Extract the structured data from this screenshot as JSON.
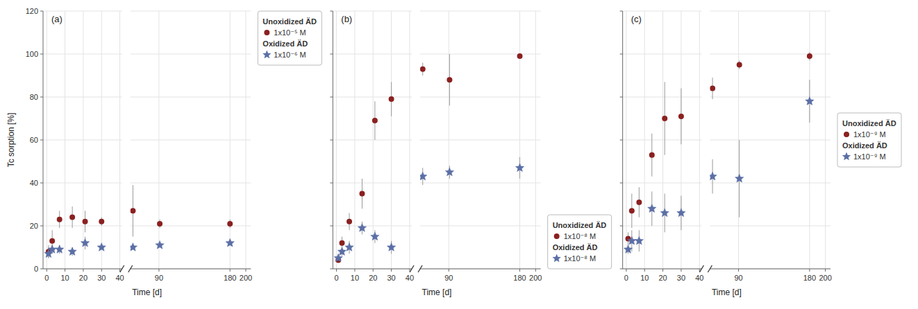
{
  "chart_data": [
    {
      "type": "scatter",
      "title": "(a)",
      "xlabel": "Time [d]",
      "ylabel": "Tc sorption [%]",
      "xlim": [
        [
          -2,
          41.2
        ],
        [
          53.75,
          206.5
        ]
      ],
      "xticks": [
        0,
        10,
        20,
        30,
        40,
        90,
        180,
        200
      ],
      "ylim": [
        0,
        120
      ],
      "yticks": [
        0,
        20,
        40,
        60,
        80,
        100,
        120
      ],
      "grid": true,
      "legend": "upper right",
      "series": [
        {
          "name": "1x10⁻⁵ M",
          "legend_title": "Unoxidized ÄD",
          "color": "#8B2020",
          "marker": "circle",
          "x": [
            1,
            3,
            7,
            14,
            21,
            30,
            57,
            91,
            180
          ],
          "values": [
            8,
            13,
            23,
            24,
            22,
            22,
            27,
            21,
            21
          ],
          "error": [
            3,
            5,
            4,
            5,
            5,
            2,
            12,
            2,
            2
          ]
        },
        {
          "name": "1x10⁻⁶ M",
          "legend_title": "Oxidized ÄD",
          "color": "#5B6FA6",
          "marker": "star",
          "x": [
            1,
            3,
            7,
            14,
            21,
            30,
            57,
            91,
            180
          ],
          "values": [
            7,
            9,
            9,
            8,
            12,
            10,
            10,
            11,
            12
          ],
          "error": [
            2,
            2,
            2,
            2,
            3,
            1,
            1,
            1,
            1
          ]
        }
      ]
    },
    {
      "type": "scatter",
      "title": "(b)",
      "xlabel": "Time [d]",
      "xlim": [
        [
          -2,
          41.2
        ],
        [
          53.75,
          206.5
        ]
      ],
      "xticks": [
        0,
        10,
        20,
        30,
        40,
        90,
        180,
        200
      ],
      "ylim": [
        0,
        120
      ],
      "yticks": [
        0,
        20,
        40,
        60,
        80,
        100,
        120
      ],
      "grid": true,
      "legend": "lower right",
      "tick_labels": "x",
      "series": [
        {
          "name": "1x10⁻⁸ M",
          "legend_title": "Unoxidized ÄD",
          "color": "#8B2020",
          "marker": "circle",
          "x": [
            1,
            3,
            7,
            14,
            21,
            30,
            57,
            91,
            180
          ],
          "values": [
            4,
            12,
            22,
            35,
            69,
            79,
            93,
            88,
            99
          ],
          "error": [
            1,
            3,
            4,
            7,
            9,
            8,
            3,
            12,
            1
          ]
        },
        {
          "name": "1x10⁻⁸ M",
          "legend_title": "Oxidized ÄD",
          "color": "#5B6FA6",
          "marker": "star",
          "x": [
            1,
            3,
            7,
            14,
            21,
            30,
            57,
            91,
            180
          ],
          "values": [
            5,
            8,
            10,
            19,
            15,
            10,
            43,
            45,
            47
          ],
          "error": [
            1,
            2,
            3,
            3,
            3,
            3,
            4,
            3,
            5
          ]
        }
      ]
    },
    {
      "type": "scatter",
      "title": "(c)",
      "xlabel": "Time [d]",
      "xlim": [
        [
          -2,
          41.2
        ],
        [
          53.75,
          206.5
        ]
      ],
      "xticks": [
        0,
        10,
        20,
        30,
        40,
        90,
        180,
        200
      ],
      "ylim": [
        0,
        120
      ],
      "yticks": [
        0,
        20,
        40,
        60,
        80,
        100,
        120
      ],
      "grid": true,
      "legend": "center right",
      "tick_labels": "x",
      "series": [
        {
          "name": "1x10⁻⁹ M",
          "legend_title": "Unoxidized ÄD",
          "color": "#8B2020",
          "marker": "circle",
          "x": [
            1,
            3,
            7,
            14,
            21,
            30,
            57,
            91,
            180
          ],
          "values": [
            14,
            27,
            31,
            53,
            70,
            71,
            84,
            95,
            99
          ],
          "error": [
            3,
            8,
            7,
            10,
            17,
            13,
            5,
            2,
            2
          ]
        },
        {
          "name": "1x10⁻⁹ M",
          "legend_title": "Oxidized ÄD",
          "color": "#5B6FA6",
          "marker": "star",
          "x": [
            1,
            3,
            7,
            14,
            21,
            30,
            57,
            91,
            180
          ],
          "values": [
            9,
            13,
            13,
            28,
            26,
            26,
            43,
            42,
            78
          ],
          "error": [
            2,
            5,
            5,
            8,
            9,
            8,
            8,
            18,
            10
          ]
        }
      ]
    }
  ]
}
